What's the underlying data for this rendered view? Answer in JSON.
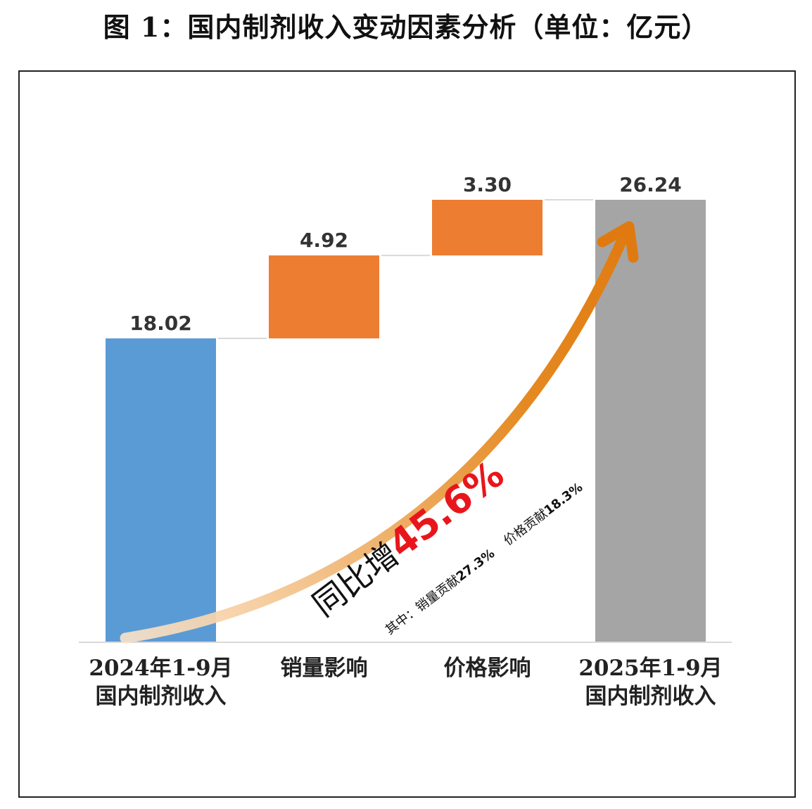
{
  "figure_title": "图 1：国内制剂收入变动因素分析（单位：亿元）",
  "chart_data": {
    "type": "bar",
    "subtype": "waterfall",
    "categories": [
      [
        "2024年1-9月",
        "国内制剂收入"
      ],
      [
        "销量影响"
      ],
      [
        "价格影响"
      ],
      [
        "2025年1-9月",
        "国内制剂收入"
      ]
    ],
    "values": [
      18.02,
      4.92,
      3.3,
      26.24
    ],
    "value_labels": [
      "18.02",
      "4.92",
      "3.30",
      "26.24"
    ],
    "bar_kinds": [
      "total",
      "increase",
      "increase",
      "total"
    ],
    "colors": {
      "start_total": "#5b9bd5",
      "increase": "#ed7d31",
      "end_total": "#a5a5a5",
      "connector": "#d9d9d9",
      "arrow": "#e07a10"
    },
    "ylim": [
      0,
      26.24
    ],
    "grid": false,
    "legend": "none",
    "annotation": {
      "main_prefix": "同比增",
      "main_value": "45.6%",
      "sub_prefix": "其中：",
      "sub_volume_label": "销量贡献",
      "sub_volume_value": "27.3%",
      "sub_price_label": "价格贡献",
      "sub_price_value": "18.3%"
    }
  }
}
